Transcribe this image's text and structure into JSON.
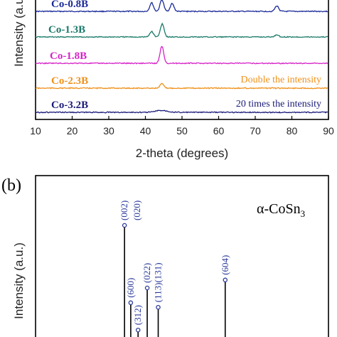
{
  "chart_data": [
    {
      "type": "line",
      "xlabel": "2-theta (degrees)",
      "ylabel": "Intensity (a.u.)",
      "xlim": [
        10,
        90
      ],
      "xticks": [
        "10",
        "20",
        "30",
        "40",
        "50",
        "60",
        "70",
        "80",
        "90"
      ],
      "series": [
        {
          "name": "Co-0.8B",
          "color": "#1a2a9a",
          "peaks": [
            [
              41.7,
              0.55
            ],
            [
              44.5,
              0.75
            ],
            [
              47.3,
              0.5
            ],
            [
              75.9,
              0.35
            ]
          ]
        },
        {
          "name": "Co-1.3B",
          "color": "#1a7a6a",
          "peaks": [
            [
              41.7,
              0.35
            ],
            [
              44.6,
              0.85
            ],
            [
              75.9,
              0.15
            ]
          ]
        },
        {
          "name": "Co-1.8B",
          "color": "#d622c8",
          "peaks": [
            [
              44.5,
              1.0
            ]
          ]
        },
        {
          "name": "Co-2.3B",
          "color": "#f0901a",
          "note": "Double the intensity",
          "peaks": [
            [
              44.5,
              0.45
            ]
          ]
        },
        {
          "name": "Co-3.2B",
          "color": "#1a1a7a",
          "note": "20 times the intensity",
          "peaks": [
            [
              44.5,
              0.3
            ]
          ]
        }
      ]
    },
    {
      "type": "bar",
      "panel_label": "(b)",
      "phase": "α-CoSn",
      "phase_subscript": "3",
      "ylabel": "Intensity (a.u.)",
      "color": "#2a3a9a",
      "peaks": [
        {
          "hkl": "(002)",
          "x": 34.3,
          "rel": 1.0
        },
        {
          "hkl": "(020)",
          "x": 34.3,
          "rel": 1.0
        },
        {
          "hkl": "(600)",
          "x": 36.0,
          "rel": 0.32
        },
        {
          "hkl": "(312)",
          "x": 38.0,
          "rel": 0.08
        },
        {
          "hkl": "(022)",
          "x": 40.5,
          "rel": 0.45
        },
        {
          "hkl": "(113)(131)",
          "x": 43.5,
          "rel": 0.28
        },
        {
          "hkl": "(604)",
          "x": 61.8,
          "rel": 0.52
        }
      ]
    }
  ]
}
